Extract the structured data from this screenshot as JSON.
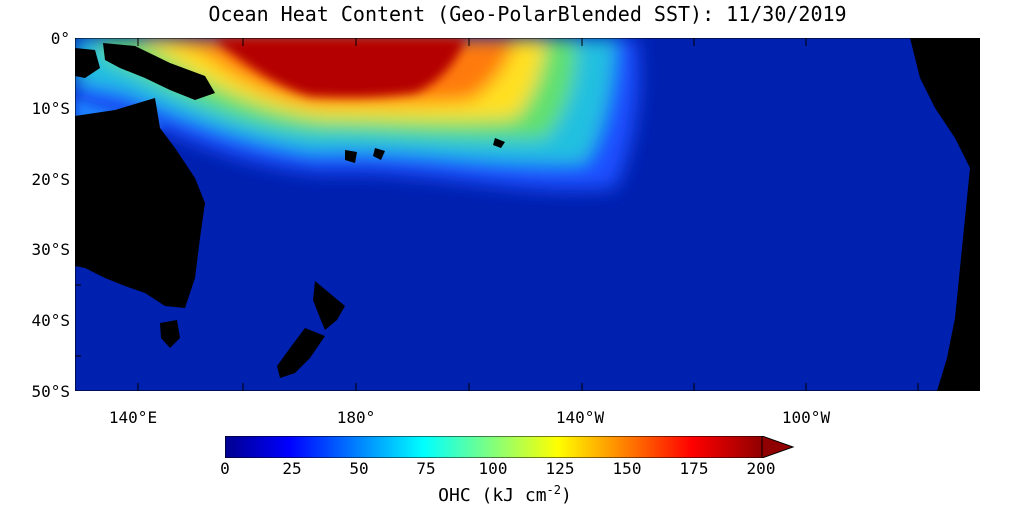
{
  "title": "Ocean Heat Content (Geo-PolarBlended SST): 11/30/2019",
  "lat_labels": [
    "0°",
    "10°S",
    "20°S",
    "30°S",
    "40°S",
    "50°S"
  ],
  "lon_labels": [
    "140°E",
    "180°",
    "140°W",
    "100°W"
  ],
  "colorbar": {
    "ticks": [
      "0",
      "25",
      "50",
      "75",
      "100",
      "125",
      "150",
      "175",
      "200"
    ],
    "unit_main": "OHC (kJ cm",
    "unit_sup": "-2",
    "unit_close": ")",
    "min": 0,
    "max": 200
  },
  "colors": {
    "land": "#000000",
    "ocean_low": "#0020b0",
    "ocean_high": "#b40000",
    "missing": "#ffffff"
  }
}
